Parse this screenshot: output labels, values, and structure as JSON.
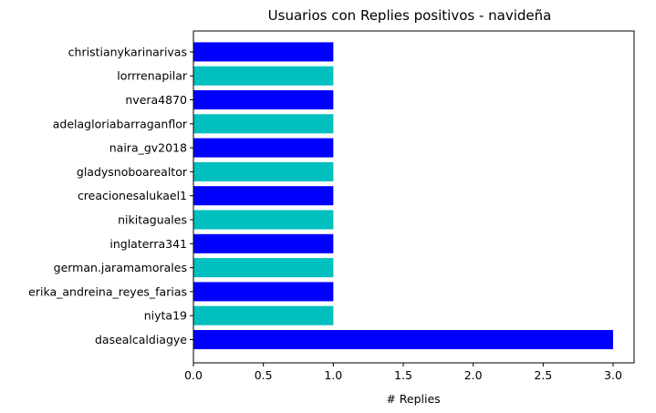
{
  "chart_data": {
    "type": "bar",
    "orientation": "horizontal",
    "title": "Usuarios con Replies positivos - navideña",
    "xlabel": "# Replies",
    "ylabel": "",
    "xlim": [
      0,
      3.15
    ],
    "xticks": [
      "0.0",
      "0.5",
      "1.0",
      "1.5",
      "2.0",
      "2.5",
      "3.0"
    ],
    "grid": false,
    "categories": [
      "dasealcaldiagye",
      "niyta19",
      "erika_andreina_reyes_farias",
      "german.jaramamorales",
      "inglaterra341",
      "nikitaguales",
      "creacionesalukael1",
      "gladysnoboarealtor",
      "naira_gv2018",
      "adelagloriabarraganflor",
      "nvera4870",
      "lorrrenapilar",
      "christianykarinarivas"
    ],
    "values": [
      3,
      1,
      1,
      1,
      1,
      1,
      1,
      1,
      1,
      1,
      1,
      1,
      1
    ],
    "colors": [
      "#0000ff",
      "#00bfbf"
    ]
  }
}
